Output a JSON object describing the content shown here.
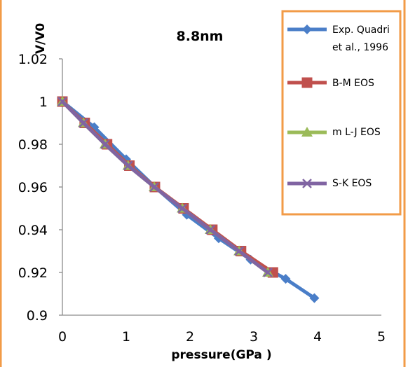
{
  "colors": {
    "frame": "#f29b47",
    "exp": "#4a7ec8",
    "bm": "#c0504d",
    "mlj": "#9bbb59",
    "sk": "#8064a2"
  },
  "chart_data": {
    "type": "line",
    "title": "8.8nm",
    "xlabel": "pressure(GPa )",
    "ylabel": "V/V0",
    "xlim": [
      0,
      5
    ],
    "ylim": [
      0.9,
      1.02
    ],
    "x_ticks": [
      "0",
      "1",
      "2",
      "3",
      "4",
      "5"
    ],
    "y_ticks": [
      "0.9",
      "0.92",
      "0.94",
      "0.96",
      "0.98",
      "1",
      "1.02"
    ],
    "grid": false,
    "legend_position": "right",
    "series": [
      {
        "name": "Exp. Quadri et al., 1996",
        "marker": "diamond",
        "x": [
          0,
          0.5,
          1.0,
          1.45,
          1.95,
          2.45,
          2.95,
          3.5,
          3.95
        ],
        "y": [
          1.0,
          0.988,
          0.973,
          0.96,
          0.947,
          0.936,
          0.926,
          0.917,
          0.908
        ]
      },
      {
        "name": "B-M EOS",
        "marker": "square",
        "x": [
          0,
          0.35,
          0.7,
          1.05,
          1.45,
          1.9,
          2.35,
          2.8,
          3.3
        ],
        "y": [
          1.0,
          0.99,
          0.98,
          0.97,
          0.96,
          0.95,
          0.94,
          0.93,
          0.92
        ]
      },
      {
        "name": "m L-J EOS",
        "marker": "triangle",
        "x": [
          0,
          0.33,
          0.67,
          1.03,
          1.44,
          1.88,
          2.32,
          2.77,
          3.22
        ],
        "y": [
          1.0,
          0.99,
          0.98,
          0.97,
          0.96,
          0.95,
          0.94,
          0.93,
          0.92
        ]
      },
      {
        "name": "S-K EOS",
        "marker": "x",
        "x": [
          0,
          0.33,
          0.67,
          1.03,
          1.44,
          1.88,
          2.32,
          2.77,
          3.22
        ],
        "y": [
          1.0,
          0.99,
          0.98,
          0.97,
          0.96,
          0.95,
          0.94,
          0.93,
          0.92
        ]
      }
    ],
    "legend_lines": [
      [
        "Exp. Quadri",
        "et al., 1996"
      ],
      [
        "B-M EOS"
      ],
      [
        "m L-J EOS"
      ],
      [
        "S-K EOS"
      ]
    ]
  }
}
